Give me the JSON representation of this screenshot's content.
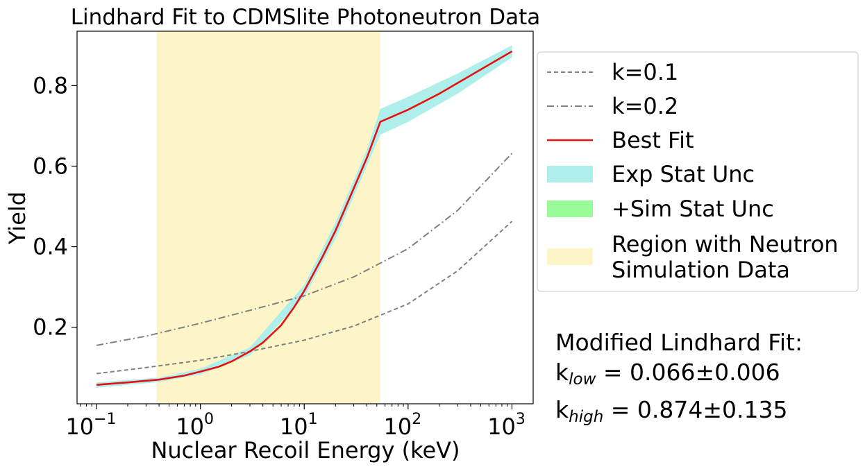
{
  "chart_data": {
    "type": "line",
    "title": "Lindhard Fit to CDMSlite Photoneutron Data",
    "xlabel": "Nuclear Recoil Energy (keV)",
    "ylabel": "Yield",
    "xscale": "log",
    "xlim": [
      0.065,
      1600
    ],
    "ylim": [
      0.01,
      0.935
    ],
    "xticks": [
      {
        "value": 0.1,
        "base": "10",
        "exp": "−1"
      },
      {
        "value": 1,
        "base": "10",
        "exp": "0"
      },
      {
        "value": 10,
        "base": "10",
        "exp": "1"
      },
      {
        "value": 100,
        "base": "10",
        "exp": "2"
      },
      {
        "value": 1000,
        "base": "10",
        "exp": "3"
      }
    ],
    "yticks": [
      {
        "value": 0.2,
        "label": "0.2"
      },
      {
        "value": 0.4,
        "label": "0.4"
      },
      {
        "value": 0.6,
        "label": "0.6"
      },
      {
        "value": 0.8,
        "label": "0.8"
      }
    ],
    "grid": false,
    "legend_position": "outside-right-top",
    "neutron_region": {
      "xmin": 0.38,
      "xmax": 54,
      "color": "#fdf5c8"
    },
    "series": [
      {
        "name": "k=0.1",
        "style": "dashed",
        "color": "#808080",
        "x": [
          0.1,
          0.3,
          1,
          3,
          10,
          30,
          100,
          300,
          1000
        ],
        "y": [
          0.085,
          0.1,
          0.118,
          0.14,
          0.168,
          0.203,
          0.258,
          0.34,
          0.463
        ]
      },
      {
        "name": "k=0.2",
        "style": "dashdot",
        "color": "#808080",
        "x": [
          0.1,
          0.3,
          1,
          3,
          10,
          30,
          100,
          300,
          1000
        ],
        "y": [
          0.155,
          0.178,
          0.21,
          0.242,
          0.278,
          0.325,
          0.395,
          0.49,
          0.632
        ]
      },
      {
        "name": "Best Fit",
        "style": "solid",
        "color": "#e8100e",
        "x": [
          0.1,
          0.2,
          0.4,
          0.7,
          1,
          1.5,
          2,
          3,
          4,
          6,
          8,
          10,
          15,
          20,
          30,
          40,
          54,
          100,
          200,
          500,
          1000
        ],
        "y": [
          0.057,
          0.063,
          0.07,
          0.08,
          0.09,
          0.102,
          0.115,
          0.14,
          0.162,
          0.205,
          0.25,
          0.29,
          0.375,
          0.44,
          0.545,
          0.62,
          0.71,
          0.74,
          0.78,
          0.84,
          0.885
        ]
      }
    ],
    "bands": [
      {
        "name": "Exp Stat Unc",
        "color": "#aeeeeb",
        "x": [
          0.1,
          0.4,
          1,
          3,
          10,
          20,
          30,
          40,
          54,
          100,
          300,
          1000
        ],
        "lower": [
          0.05,
          0.064,
          0.083,
          0.13,
          0.275,
          0.42,
          0.525,
          0.6,
          0.678,
          0.71,
          0.78,
          0.87
        ],
        "upper": [
          0.063,
          0.075,
          0.097,
          0.15,
          0.305,
          0.46,
          0.565,
          0.64,
          0.742,
          0.772,
          0.83,
          0.9
        ]
      },
      {
        "name": "+Sim Stat Unc",
        "color": "#98fb98",
        "x": [],
        "lower": [],
        "upper": []
      }
    ],
    "legend": [
      {
        "label": "k=0.1",
        "kind": "line",
        "dash": "dashed",
        "color": "#808080"
      },
      {
        "label": "k=0.2",
        "kind": "line",
        "dash": "dashdot",
        "color": "#808080"
      },
      {
        "label": "Best Fit",
        "kind": "line",
        "dash": "solid",
        "color": "#e8100e"
      },
      {
        "label": "Exp Stat Unc",
        "kind": "patch",
        "color": "#aeeeeb"
      },
      {
        "label": "+Sim Stat Unc",
        "kind": "patch",
        "color": "#98fb98"
      },
      {
        "label": "Region with Neutron",
        "label2": "Simulation Data",
        "kind": "patch",
        "color": "#fdf5c8"
      }
    ]
  },
  "annotation": {
    "heading": "Modified Lindhard Fit:",
    "k_low_sym": "k",
    "k_low_sub": "low",
    "k_low_value": " = 0.066±0.006",
    "k_high_sym": "k",
    "k_high_sub": "high",
    "k_high_value": " = 0.874±0.135"
  }
}
